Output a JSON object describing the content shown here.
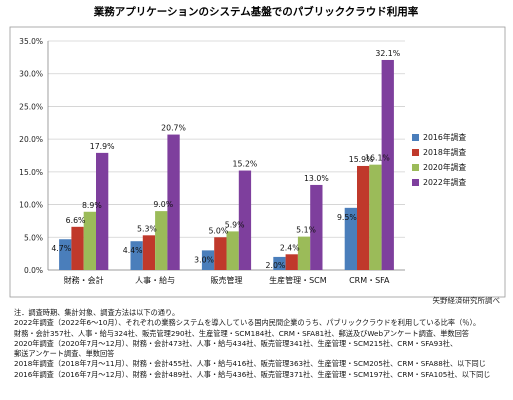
{
  "chart_data": {
    "type": "bar",
    "title": "業務アプリケーションのシステム基盤でのパブリッククラウド利用率",
    "categories": [
      "財務・会計",
      "人事・給与",
      "販売管理",
      "生産管理・SCM",
      "CRM・SFA"
    ],
    "ylim": [
      0,
      35
    ],
    "ytick_labels": [
      "0.0%",
      "5.0%",
      "10.0%",
      "15.0%",
      "20.0%",
      "25.0%",
      "30.0%",
      "35.0%"
    ],
    "grid": true,
    "legend_position": "right",
    "series": [
      {
        "name": "2016年調査",
        "color": "#4a7ebb",
        "values": [
          4.7,
          4.4,
          3.0,
          2.0,
          9.5
        ],
        "labels": [
          "4.7%",
          "4.4%",
          "3.0%",
          "2.0%",
          "9.5%"
        ]
      },
      {
        "name": "2018年調査",
        "color": "#c0392b",
        "values": [
          6.6,
          5.3,
          5.0,
          2.4,
          15.9
        ],
        "labels": [
          "6.6%",
          "5.3%",
          "5.0%",
          "2.4%",
          "15.9%"
        ]
      },
      {
        "name": "2020年調査",
        "color": "#9bbb59",
        "values": [
          8.9,
          9.0,
          5.9,
          5.1,
          16.1
        ],
        "labels": [
          "8.9%",
          "9.0%",
          "5.9%",
          "5.1%",
          "16.1%"
        ]
      },
      {
        "name": "2022年調査",
        "color": "#7e3f9d",
        "values": [
          17.9,
          20.7,
          15.2,
          13.0,
          32.1
        ],
        "labels": [
          "17.9%",
          "20.7%",
          "15.2%",
          "13.0%",
          "32.1%"
        ]
      }
    ]
  },
  "source": "矢野経済研究所調べ",
  "notes": [
    "注．調査時期、集計対象、調査方法は以下の通り。",
    "2022年調査（2022年6～10月）、それぞれの業務システムを導入している国内民間企業のうち、パブリッククラウドを利用している比率（％）。",
    "財務・会計357社、人事・給与324社、販売管理290社、生産管理・SCM184社、CRM・SFA81社、郵送及びWebアンケート調査、単数回答",
    "2020年調査（2020年7月～12月）、財務・会計473社、人事・給与434社、販売管理341社、生産管理・SCM215社、CRM・SFA93社、",
    "郵送アンケート調査、単数回答",
    "2018年調査（2018年7月～11月）、財務・会計455社、人事・給与416社、販売管理363社、生産管理・SCM205社、CRM・SFA88社、以下同じ",
    "2016年調査（2016年7月～12月）、財務・会計489社、人事・給与436社、販売管理371社、生産管理・SCM197社、CRM・SFA105社、以下同じ"
  ]
}
